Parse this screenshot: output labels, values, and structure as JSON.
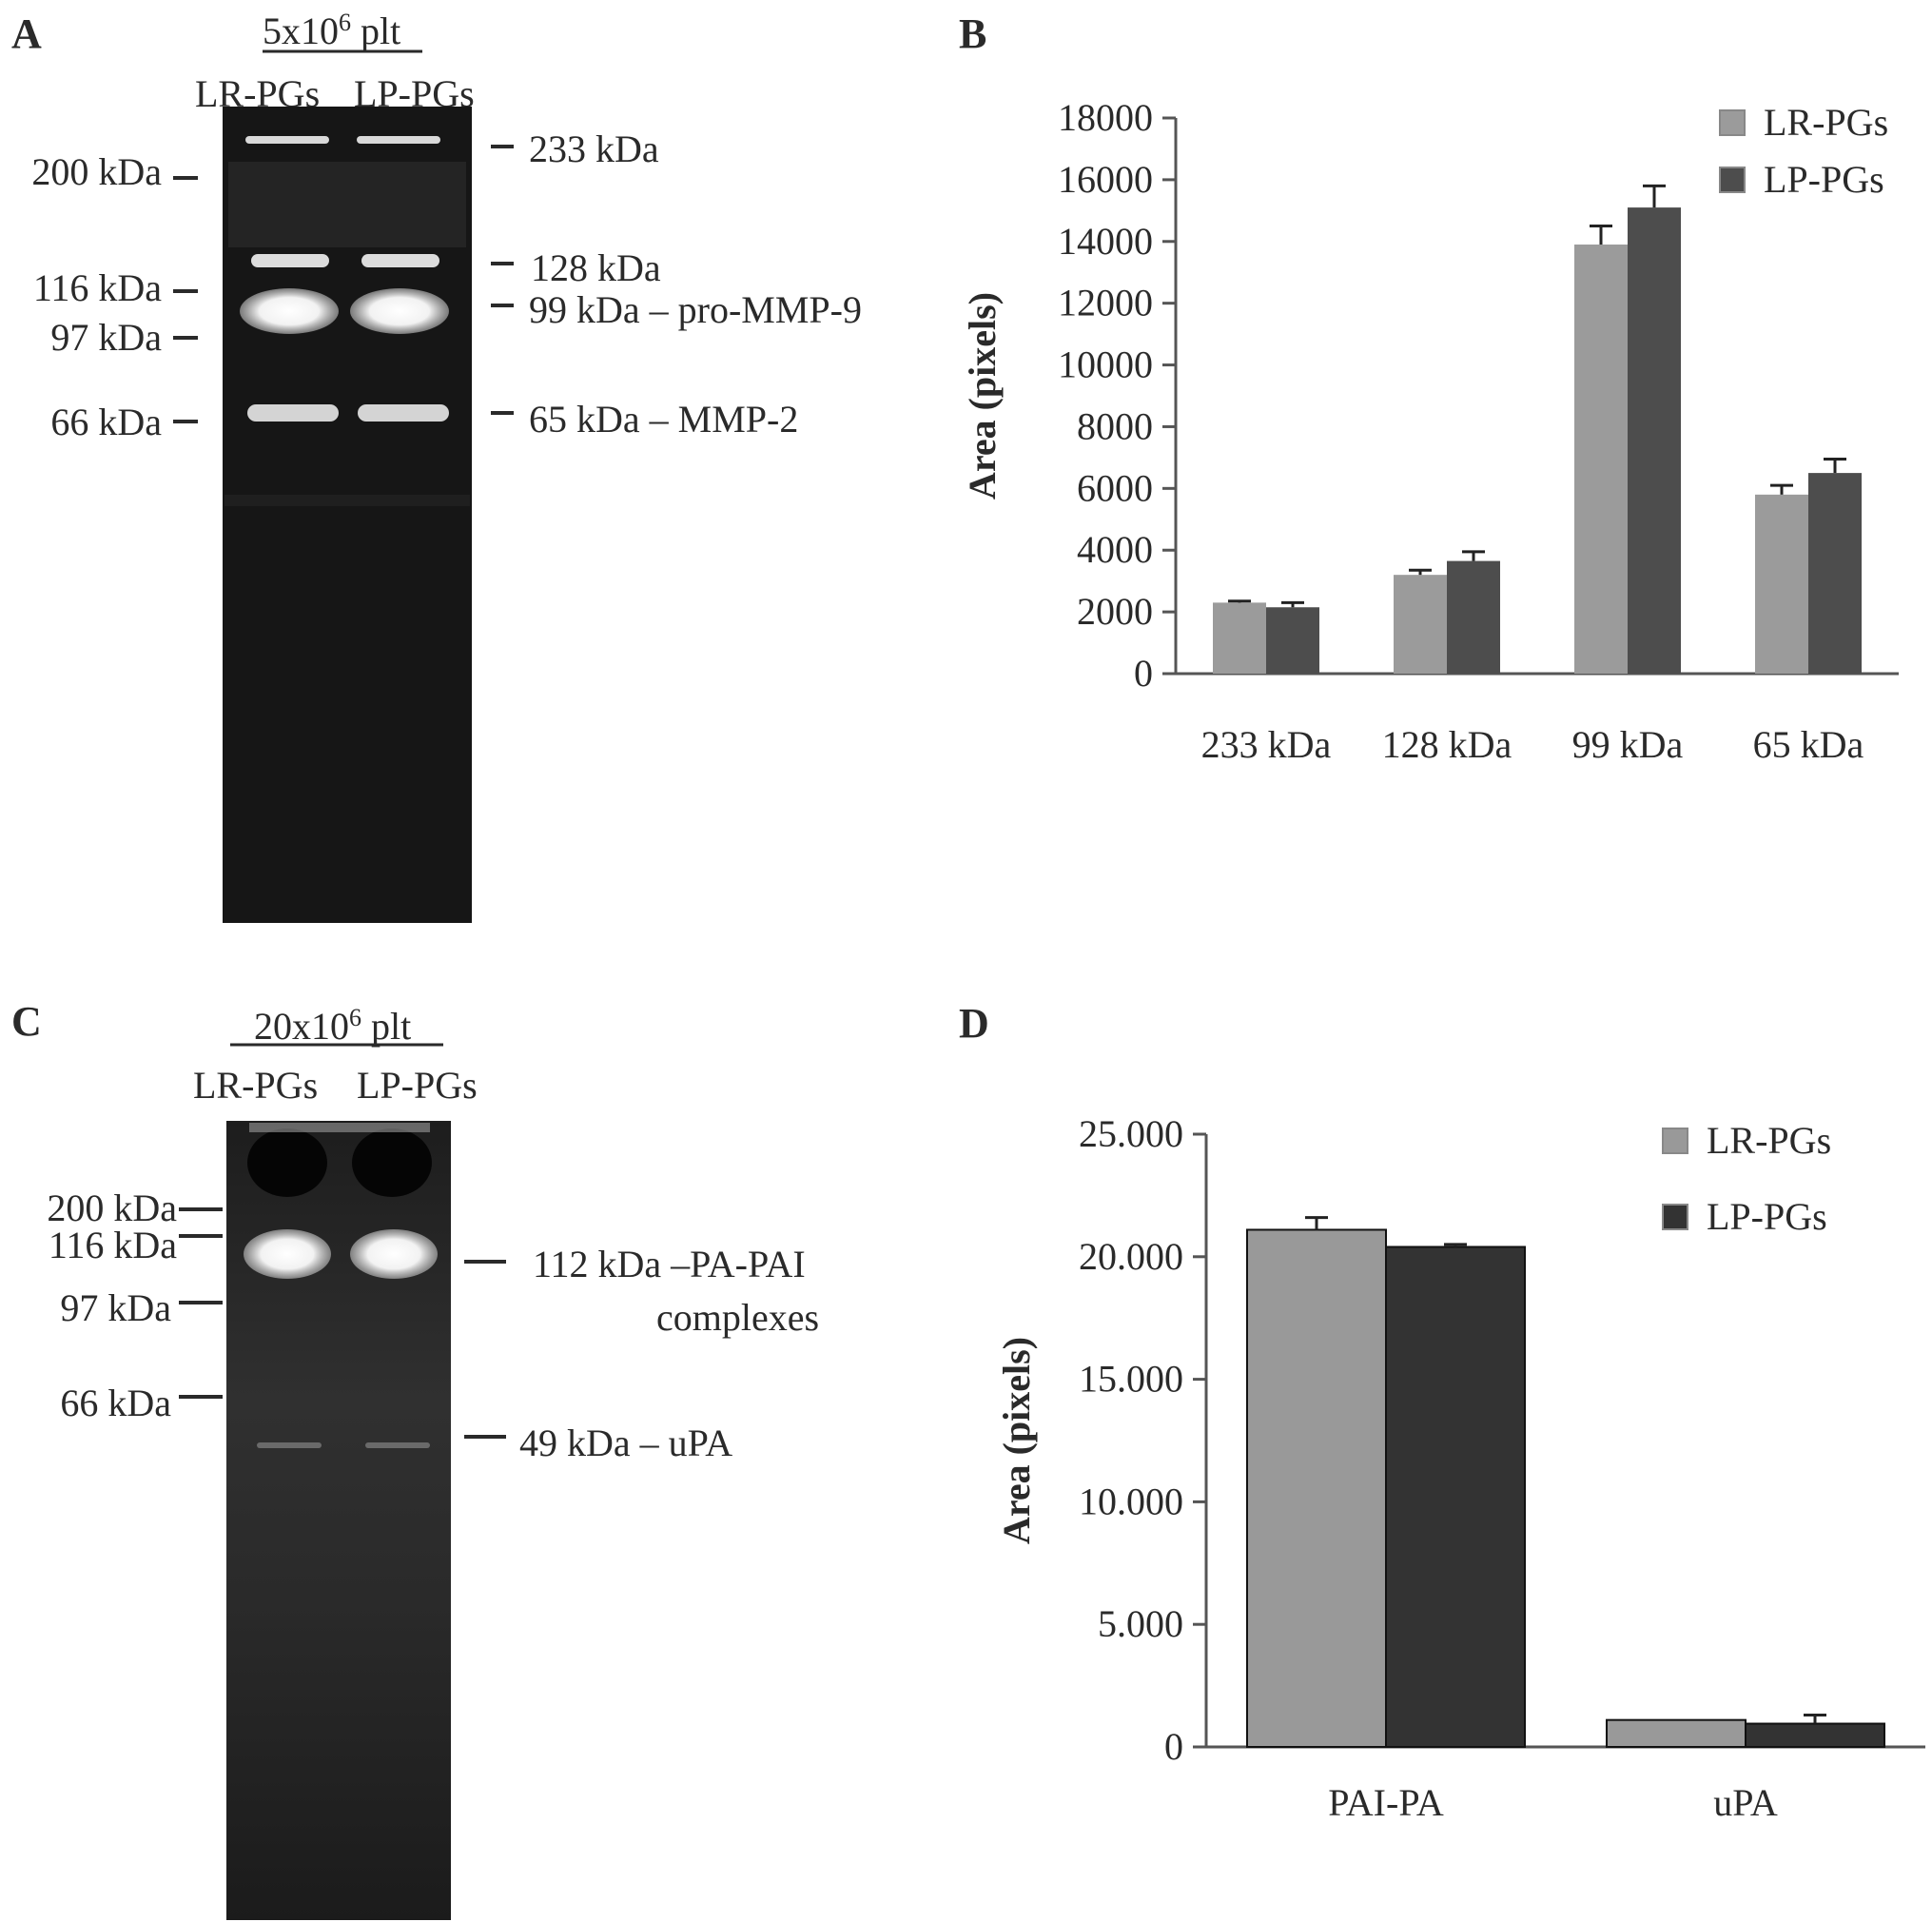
{
  "panels": {
    "a": {
      "letter": "A",
      "header": "5x10",
      "header_sup": "6",
      "header_suffix": " plt",
      "lanes": [
        "LR-PGs",
        "LP-PGs"
      ],
      "markers_left": [
        "200 kDa",
        "116 kDa",
        "97 kDa",
        "66 kDa"
      ],
      "bands_right": [
        "233 kDa",
        "128 kDa",
        "99 kDa – pro-MMP-9",
        "65 kDa – MMP-2"
      ]
    },
    "b": {
      "letter": "B"
    },
    "c": {
      "letter": "C",
      "header": "20x10",
      "header_sup": "6",
      "header_suffix": " plt",
      "lanes": [
        "LR-PGs",
        "LP-PGs"
      ],
      "markers_left": [
        "200 kDa",
        "116 kDa",
        "97 kDa",
        "66 kDa"
      ],
      "bands_right": [
        "112 kDa –PA-PAI",
        "complexes",
        "49 kDa – uPA"
      ]
    },
    "d": {
      "letter": "D"
    }
  },
  "chart_data": [
    {
      "panel": "B",
      "type": "bar",
      "categories": [
        "233 kDa",
        "128 kDa",
        "99 kDa",
        "65 kDa"
      ],
      "series": [
        {
          "name": "LR-PGs",
          "values": [
            2300,
            3200,
            13900,
            5800
          ],
          "errors": [
            50,
            150,
            600,
            300
          ],
          "color": "#9b9b9b"
        },
        {
          "name": "LP-PGs",
          "values": [
            2150,
            3650,
            15100,
            6500
          ],
          "errors": [
            150,
            300,
            700,
            450
          ],
          "color": "#4d4d4d"
        }
      ],
      "ylabel": "Area (pixels)",
      "ylim": [
        0,
        18000
      ],
      "yticks": [
        "0",
        "2000",
        "4000",
        "6000",
        "8000",
        "10000",
        "12000",
        "14000",
        "16000",
        "18000"
      ],
      "grid": false,
      "legend": "top-right"
    },
    {
      "panel": "D",
      "type": "bar",
      "categories": [
        "PAI-PA",
        "uPA"
      ],
      "series": [
        {
          "name": "LR-PGs",
          "values": [
            21100,
            1100
          ],
          "errors": [
            500,
            0
          ],
          "color": "#999999"
        },
        {
          "name": "LP-PGs",
          "values": [
            20400,
            950
          ],
          "errors": [
            100,
            350
          ],
          "color": "#333333"
        }
      ],
      "ylabel": "Area (pixels)",
      "ylim": [
        0,
        25000
      ],
      "yticks": [
        "0",
        "5.000",
        "10.000",
        "15.000",
        "20.000",
        "25.000"
      ],
      "grid": false,
      "legend": "top-right"
    }
  ]
}
